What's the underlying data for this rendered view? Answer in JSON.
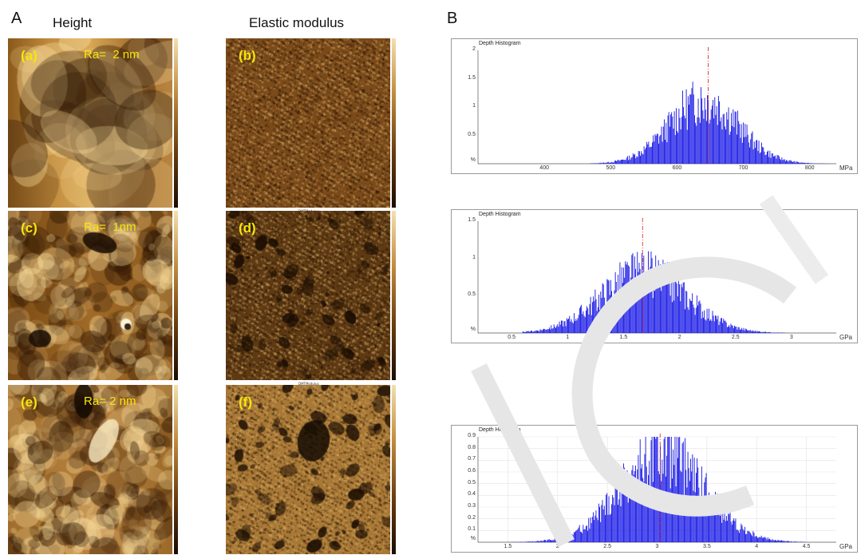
{
  "panel_a_letter": "A",
  "panel_b_letter": "B",
  "col_height": "Height",
  "col_modulus": "Elastic modulus",
  "afm": [
    {
      "label": "(a)",
      "ra": "Ra=  2 nm",
      "kind": "height",
      "seed": 1
    },
    {
      "label": "(b)",
      "ra": "",
      "kind": "modulus",
      "seed": 2
    },
    {
      "label": "(c)",
      "ra": "Ra=  1nm",
      "kind": "height",
      "seed": 3
    },
    {
      "label": "(d)",
      "ra": "",
      "kind": "modulus",
      "seed": 4
    },
    {
      "label": "(e)",
      "ra": "Ra= 2 nm",
      "kind": "height",
      "seed": 5
    },
    {
      "label": "(f)",
      "ra": "",
      "kind": "modulus",
      "seed": 6
    }
  ],
  "tiny_modulus_label": "DMTModulus",
  "colors": {
    "bar": "#1414e6",
    "marker": "#e03030",
    "afm_dark": "#3a2108",
    "afm_light": "#e8c070",
    "label": "#f5e60a"
  },
  "chart_data": [
    {
      "type": "bar",
      "title": "Depth Histogram",
      "xunit": "MPa",
      "yunit": "%",
      "xlim": [
        300,
        840
      ],
      "ylim": [
        0,
        2
      ],
      "xticks": [
        400,
        500,
        600,
        700,
        800
      ],
      "yticks": [
        0.5,
        1,
        1.5,
        2
      ],
      "ytick_labels": [
        "0.5",
        "1",
        "1.5",
        "2"
      ],
      "marker_x": 647,
      "dist": {
        "center": 640,
        "sigma": 52,
        "peak": 1.2,
        "xmin": 470,
        "xmax": 830
      },
      "grid": false
    },
    {
      "type": "bar",
      "title": "Depth Histogram",
      "xunit": "GPa",
      "yunit": "%",
      "xlim": [
        0.2,
        3.4
      ],
      "ylim": [
        0,
        1.5
      ],
      "xticks": [
        0.5,
        1,
        1.5,
        2,
        2.5,
        3
      ],
      "yticks": [
        0.5,
        1,
        1.5
      ],
      "ytick_labels": [
        "0.5",
        "1",
        "1.5"
      ],
      "marker_x": 1.67,
      "dist": {
        "center": 1.68,
        "sigma": 0.38,
        "peak": 0.86,
        "xmin": 0.6,
        "xmax": 2.95
      },
      "grid": false
    },
    {
      "type": "bar",
      "title": "Depth Histogram",
      "xunit": "GPa",
      "yunit": "%",
      "xlim": [
        1.2,
        4.8
      ],
      "ylim": [
        0,
        0.9
      ],
      "xticks": [
        1.5,
        2,
        2.5,
        3,
        3.5,
        4,
        4.5
      ],
      "yticks": [
        0.1,
        0.2,
        0.3,
        0.4,
        0.5,
        0.6,
        0.7,
        0.8,
        0.9
      ],
      "ytick_labels": [
        "0.1",
        "0.2",
        "0.3",
        "0.4",
        "0.5",
        "0.6",
        "0.7",
        "0.8",
        "0.9"
      ],
      "marker_x": 3.03,
      "dist": {
        "center": 3.05,
        "sigma": 0.42,
        "peak": 0.8,
        "xmin": 1.5,
        "xmax": 4.5
      },
      "grid": true
    }
  ]
}
